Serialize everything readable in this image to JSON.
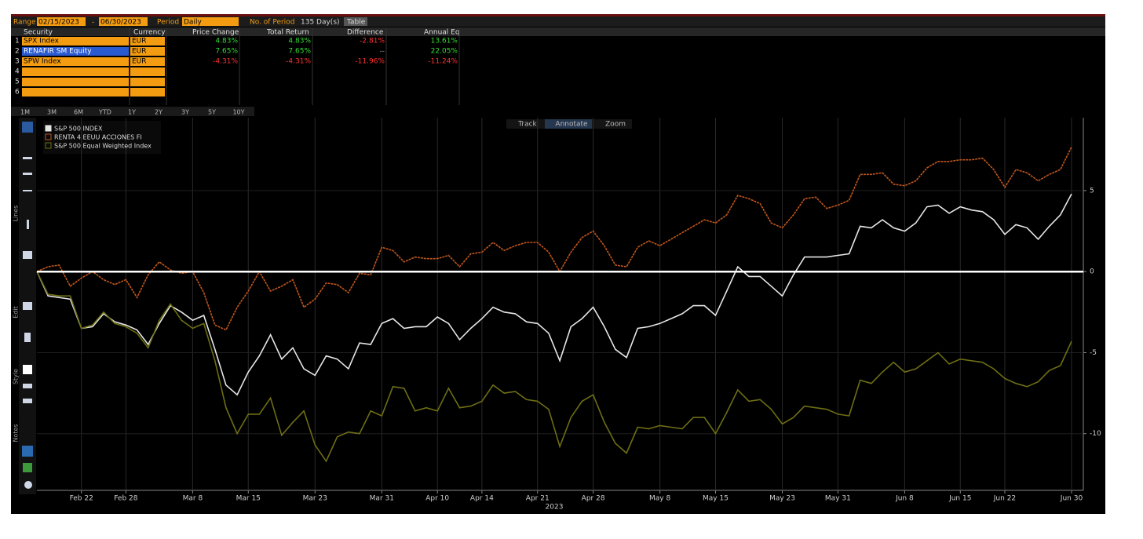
{
  "header": {
    "range_label": "Range",
    "start": "02/15/2023",
    "end": "06/30/2023",
    "period_label": "Period",
    "period": "Daily",
    "count_label": "No. of Period",
    "count": "135 Day(s)",
    "view": "Table"
  },
  "table": {
    "columns": [
      "Security",
      "Currency",
      "Price Change",
      "Total Return",
      "Difference",
      "Annual Eq"
    ],
    "rows": [
      [
        "1",
        "SPX Index",
        "EUR",
        "4.83%",
        "4.83%",
        "-2.81%",
        "13.61%"
      ],
      [
        "2",
        "RENAFIR SM Equity",
        "EUR",
        "7.65%",
        "7.65%",
        "--",
        "22.05%"
      ],
      [
        "3",
        "SPW Index",
        "EUR",
        "-4.31%",
        "-4.31%",
        "-11.96%",
        "-11.24%"
      ],
      [
        "4"
      ],
      [
        "5"
      ],
      [
        "6"
      ]
    ]
  },
  "periods": [
    "1M",
    "3M",
    "6M",
    "YTD",
    "1Y",
    "2Y",
    "3Y",
    "5Y",
    "10Y"
  ],
  "tools": [
    "Track",
    "Annotate",
    "Zoom"
  ],
  "toolbar_sections": [
    "Lines",
    "Edit",
    "Style",
    "Notes"
  ],
  "chart_data": {
    "type": "line",
    "xlabel": "2023",
    "categories": [
      null,
      null,
      null,
      null,
      "Feb 22",
      null,
      null,
      null,
      "Feb 28",
      null,
      null,
      null,
      null,
      null,
      "Mar 8",
      null,
      null,
      null,
      null,
      "Mar 15",
      null,
      null,
      null,
      null,
      null,
      "Mar 23",
      null,
      null,
      null,
      null,
      null,
      "Mar 31",
      null,
      null,
      null,
      null,
      "Apr 10",
      null,
      null,
      null,
      "Apr 14",
      null,
      null,
      null,
      null,
      "Apr 21",
      null,
      null,
      null,
      null,
      "Apr 28",
      null,
      null,
      null,
      null,
      null,
      "May 8",
      null,
      null,
      null,
      null,
      "May 15",
      null,
      null,
      null,
      null,
      null,
      "May 23",
      null,
      null,
      null,
      null,
      "May 31",
      null,
      null,
      null,
      null,
      null,
      "Jun 8",
      null,
      null,
      null,
      null,
      "Jun 15",
      null,
      null,
      null,
      "Jun 22",
      null,
      null,
      null,
      null,
      null,
      "Jun 30"
    ],
    "series": [
      {
        "name": "S&P 500 INDEX",
        "color": "#e6e6e6",
        "values": [
          0,
          -1.5,
          -1.6,
          -1.7,
          -3.5,
          -3.4,
          -2.6,
          -3.1,
          -3.3,
          -3.6,
          -4.5,
          -3.2,
          -2.1,
          -2.5,
          -3.0,
          -2.7,
          -4.8,
          -7.0,
          -7.6,
          -6.2,
          -5.2,
          -3.9,
          -5.4,
          -4.7,
          -6.0,
          -6.4,
          -5.2,
          -5.4,
          -6.0,
          -4.4,
          -4.5,
          -3.2,
          -2.9,
          -3.5,
          -3.4,
          -3.4,
          -2.8,
          -3.2,
          -4.2,
          -3.5,
          -2.9,
          -2.2,
          -2.5,
          -2.6,
          -3.1,
          -3.2,
          -3.8,
          -5.5,
          -3.4,
          -2.9,
          -2.2,
          -3.4,
          -4.8,
          -5.3,
          -3.5,
          -3.4,
          -3.2,
          -2.9,
          -2.6,
          -2.1,
          -2.1,
          -2.7,
          -1.2,
          0.3,
          -0.3,
          -0.3,
          -0.9,
          -1.5,
          -0.2,
          0.9,
          0.9,
          0.9,
          1.0,
          1.1,
          2.8,
          2.7,
          3.2,
          2.7,
          2.5,
          3.0,
          4.0,
          4.1,
          3.6,
          4.0,
          3.8,
          3.7,
          3.2,
          2.3,
          2.9,
          2.7,
          2.0,
          2.8,
          3.5,
          4.8
        ]
      },
      {
        "name": "RENTA 4 EEUU ACCIONES FI",
        "color": "#c0561c",
        "values": [
          0,
          0.3,
          0.4,
          -0.9,
          -0.4,
          0.0,
          -0.5,
          -0.8,
          -0.5,
          -1.6,
          -0.2,
          0.6,
          0.1,
          -0.1,
          0.0,
          -1.3,
          -3.3,
          -3.6,
          -2.2,
          -1.2,
          0.0,
          -1.2,
          -0.9,
          -0.5,
          -2.2,
          -1.7,
          -0.7,
          -0.8,
          -1.3,
          -0.1,
          -0.2,
          1.5,
          1.3,
          0.6,
          0.9,
          0.8,
          0.8,
          1.0,
          0.3,
          1.1,
          1.2,
          1.8,
          1.3,
          1.6,
          1.8,
          1.8,
          1.2,
          0.0,
          1.2,
          2.1,
          2.5,
          1.6,
          0.4,
          0.3,
          1.5,
          1.9,
          1.6,
          2.0,
          2.4,
          2.8,
          3.2,
          3.0,
          3.5,
          4.7,
          4.5,
          4.2,
          3.0,
          2.7,
          3.5,
          4.5,
          4.6,
          3.9,
          4.1,
          4.4,
          6.0,
          6.0,
          6.1,
          5.4,
          5.3,
          5.6,
          6.4,
          6.8,
          6.8,
          6.9,
          6.9,
          7.0,
          6.3,
          5.2,
          6.3,
          6.1,
          5.6,
          6.0,
          6.3,
          7.7
        ]
      },
      {
        "name": "S&P 500 Equal Weighted Index",
        "color": "#6e6e14",
        "values": [
          0,
          -1.4,
          -1.5,
          -1.5,
          -3.5,
          -3.3,
          -2.5,
          -3.2,
          -3.4,
          -3.8,
          -4.7,
          -3.0,
          -2.0,
          -3.0,
          -3.5,
          -3.2,
          -5.5,
          -8.4,
          -10.0,
          -8.8,
          -8.8,
          -7.8,
          -10.1,
          -9.3,
          -8.6,
          -10.7,
          -11.7,
          -10.2,
          -9.9,
          -10.0,
          -8.6,
          -8.9,
          -7.1,
          -7.2,
          -8.6,
          -8.4,
          -8.6,
          -7.2,
          -8.4,
          -8.3,
          -8.0,
          -7.0,
          -7.5,
          -7.4,
          -7.9,
          -8.0,
          -8.5,
          -10.8,
          -9.0,
          -8.0,
          -7.6,
          -9.3,
          -10.6,
          -11.2,
          -9.6,
          -9.7,
          -9.5,
          -9.6,
          -9.7,
          -9.0,
          -9.0,
          -10.0,
          -8.7,
          -7.3,
          -8.0,
          -7.9,
          -8.5,
          -9.4,
          -9.0,
          -8.3,
          -8.4,
          -8.5,
          -8.8,
          -8.9,
          -6.7,
          -6.9,
          -6.2,
          -5.6,
          -6.2,
          -6.0,
          -5.5,
          -5.0,
          -5.7,
          -5.4,
          -5.5,
          -5.6,
          -6.0,
          -6.6,
          -6.9,
          -7.1,
          -6.8,
          -6.1,
          -5.8,
          -4.3
        ]
      }
    ],
    "ylim": [
      -13.5,
      9.5
    ],
    "yticks": [
      5,
      0,
      -5,
      -10
    ],
    "hline": 0,
    "grid": true
  }
}
